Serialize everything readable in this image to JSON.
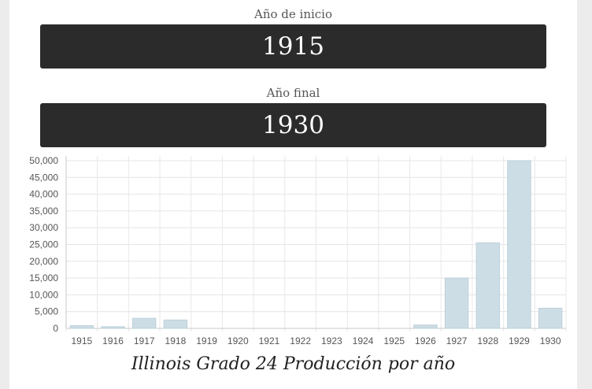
{
  "form": {
    "start_label": "Año de inicio",
    "start_value": "1915",
    "end_label": "Año final",
    "end_value": "1930"
  },
  "colors": {
    "bar_fill": "#cddde6",
    "bar_stroke": "#bcd0db",
    "box_bg": "#2b2b2b"
  },
  "chart_data": {
    "type": "bar",
    "title": "Illinois Grado 24 Producción por año",
    "categories": [
      "1915",
      "1916",
      "1917",
      "1918",
      "1919",
      "1920",
      "1921",
      "1922",
      "1923",
      "1924",
      "1925",
      "1926",
      "1927",
      "1928",
      "1929",
      "1930"
    ],
    "values": [
      800,
      500,
      3000,
      2500,
      0,
      0,
      0,
      0,
      0,
      0,
      0,
      1000,
      15000,
      25500,
      50000,
      6000
    ],
    "yticks": [
      "0",
      "5,000",
      "10,000",
      "15,000",
      "20,000",
      "25,000",
      "30,000",
      "35,000",
      "40,000",
      "45,000",
      "50,000"
    ],
    "ylim": [
      0,
      50000
    ],
    "xlabel": "",
    "ylabel": "",
    "grid": true
  },
  "footer": {
    "description": ""
  }
}
